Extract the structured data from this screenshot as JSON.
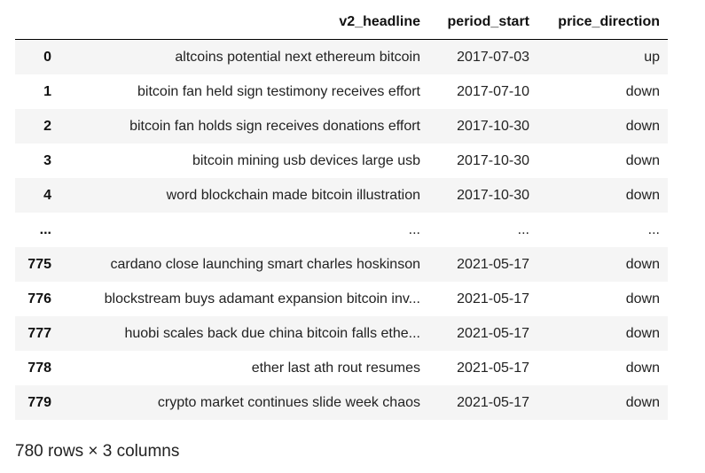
{
  "table": {
    "columns": [
      "",
      "v2_headline",
      "period_start",
      "price_direction"
    ],
    "rows": [
      {
        "index": "0",
        "v2_headline": "altcoins potential next ethereum bitcoin",
        "period_start": "2017-07-03",
        "price_direction": "up"
      },
      {
        "index": "1",
        "v2_headline": "bitcoin fan held sign testimony receives effort",
        "period_start": "2017-07-10",
        "price_direction": "down"
      },
      {
        "index": "2",
        "v2_headline": "bitcoin fan holds sign receives donations effort",
        "period_start": "2017-10-30",
        "price_direction": "down"
      },
      {
        "index": "3",
        "v2_headline": "bitcoin mining usb devices large usb",
        "period_start": "2017-10-30",
        "price_direction": "down"
      },
      {
        "index": "4",
        "v2_headline": "word blockchain made bitcoin illustration",
        "period_start": "2017-10-30",
        "price_direction": "down"
      },
      {
        "index": "...",
        "v2_headline": "...",
        "period_start": "...",
        "price_direction": "..."
      },
      {
        "index": "775",
        "v2_headline": "cardano close launching smart charles hoskinson",
        "period_start": "2021-05-17",
        "price_direction": "down"
      },
      {
        "index": "776",
        "v2_headline": "blockstream buys adamant expansion bitcoin inv...",
        "period_start": "2021-05-17",
        "price_direction": "down"
      },
      {
        "index": "777",
        "v2_headline": "huobi scales back due china bitcoin falls ethe...",
        "period_start": "2021-05-17",
        "price_direction": "down"
      },
      {
        "index": "778",
        "v2_headline": "ether last ath rout resumes",
        "period_start": "2021-05-17",
        "price_direction": "down"
      },
      {
        "index": "779",
        "v2_headline": "crypto market continues slide week chaos",
        "period_start": "2021-05-17",
        "price_direction": "down"
      }
    ]
  },
  "shape_note": "780 rows × 3 columns",
  "colors": {
    "stripe": "#f5f5f5",
    "header_rule": "#000000"
  }
}
